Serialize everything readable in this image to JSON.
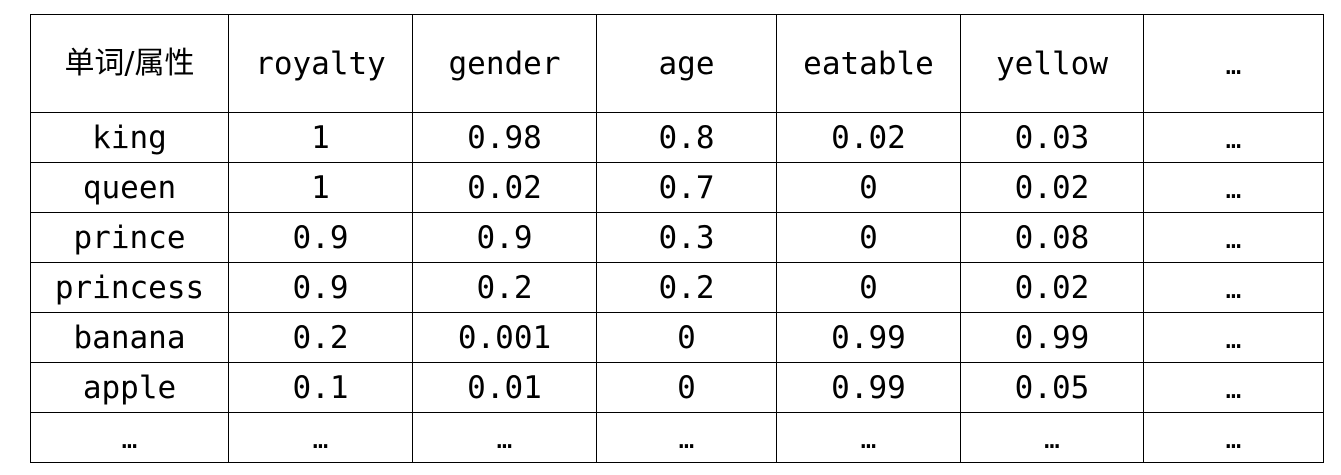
{
  "table": {
    "corner_label": "单词/属性",
    "headers": [
      "royalty",
      "gender",
      "age",
      "eatable",
      "yellow",
      "…"
    ],
    "rows": [
      {
        "word": "king",
        "values": [
          "1",
          "0.98",
          "0.8",
          "0.02",
          "0.03",
          "…"
        ]
      },
      {
        "word": "queen",
        "values": [
          "1",
          "0.02",
          "0.7",
          "0",
          "0.02",
          "…"
        ]
      },
      {
        "word": "prince",
        "values": [
          "0.9",
          "0.9",
          "0.3",
          "0",
          "0.08",
          "…"
        ]
      },
      {
        "word": "princess",
        "values": [
          "0.9",
          "0.2",
          "0.2",
          "0",
          "0.02",
          "…"
        ]
      },
      {
        "word": "banana",
        "values": [
          "0.2",
          "0.001",
          "0",
          "0.99",
          "0.99",
          "…"
        ]
      },
      {
        "word": "apple",
        "values": [
          "0.1",
          "0.01",
          "0",
          "0.99",
          "0.05",
          "…"
        ]
      },
      {
        "word": "…",
        "values": [
          "…",
          "…",
          "…",
          "…",
          "…",
          "…"
        ]
      }
    ]
  }
}
